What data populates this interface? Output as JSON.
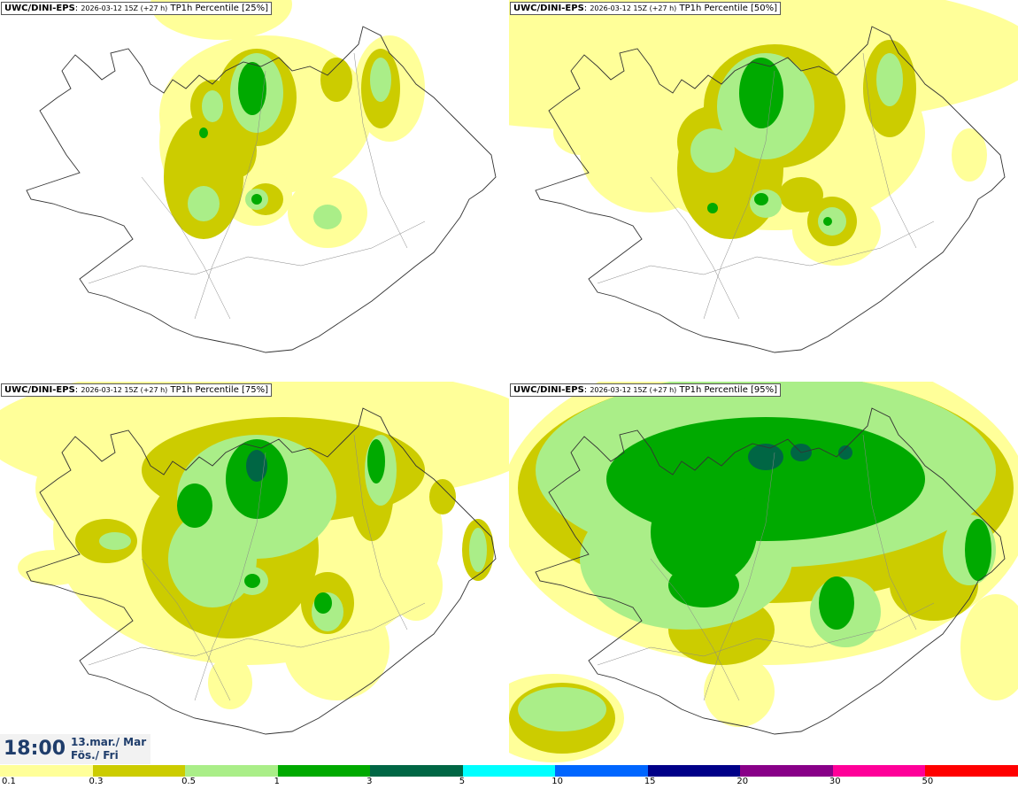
{
  "panels": [
    {
      "source": "UWC/DINI-EPS",
      "run": "2026-03-12 15Z (+27 h)",
      "product": "TP1h Percentile [25%]"
    },
    {
      "source": "UWC/DINI-EPS",
      "run": "2026-03-12 15Z (+27 h)",
      "product": "TP1h Percentile [50%]"
    },
    {
      "source": "UWC/DINI-EPS",
      "run": "2026-03-12 15Z (+27 h)",
      "product": "TP1h Percentile [75%]"
    },
    {
      "source": "UWC/DINI-EPS",
      "run": "2026-03-12 15Z (+27 h)",
      "product": "TP1h Percentile [95%]"
    }
  ],
  "valid_time": {
    "time": "18:00",
    "date": "13.mar./ Mar",
    "weekday": "Fös./ Fri"
  },
  "legend": {
    "colors": [
      "#ffff99",
      "#cccc00",
      "#aaee88",
      "#00aa00",
      "#006644",
      "#00ffff",
      "#0066ff",
      "#000088",
      "#880088",
      "#ff0099",
      "#ff0000"
    ],
    "labels": [
      "0.1",
      "0.3",
      "0.5",
      "1",
      "3",
      "5",
      "10",
      "15",
      "20",
      "30",
      "50"
    ]
  }
}
